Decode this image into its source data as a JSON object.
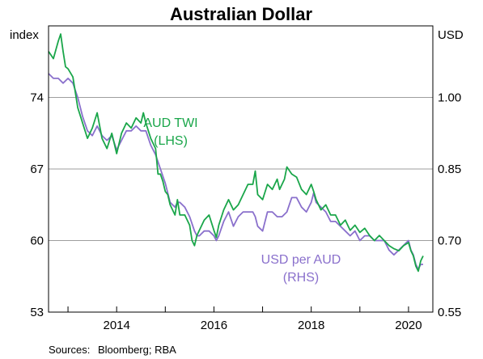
{
  "chart_data": {
    "type": "line",
    "title": "Australian Dollar",
    "left_unit": "index",
    "right_unit": "USD",
    "y_left": {
      "min": 53,
      "max": 81,
      "ticks": [
        53,
        60,
        67,
        74
      ],
      "labels": [
        "53",
        "60",
        "67",
        "74"
      ]
    },
    "y_right": {
      "min": 0.55,
      "max": 1.15,
      "ticks": [
        0.55,
        0.7,
        0.85,
        1.0
      ],
      "labels": [
        "0.55",
        "0.70",
        "0.85",
        "1.00"
      ]
    },
    "x_axis": {
      "min": 2012.6,
      "max": 2020.5,
      "tick_positions": [
        2013,
        2014,
        2015,
        2016,
        2017,
        2018,
        2019,
        2020
      ],
      "labeled_years": [
        2014,
        2016,
        2018,
        2020
      ],
      "labels": [
        "2014",
        "2016",
        "2018",
        "2020"
      ]
    },
    "grid": true,
    "series": [
      {
        "name": "AUD TWI",
        "axis": "left",
        "annotation": [
          "AUD TWI",
          "(LHS)"
        ],
        "color": "#1aa64a",
        "points": [
          [
            2012.6,
            78.5
          ],
          [
            2012.7,
            77.8
          ],
          [
            2012.8,
            79.5
          ],
          [
            2012.85,
            80.2
          ],
          [
            2012.9,
            78.5
          ],
          [
            2012.95,
            77.0
          ],
          [
            2013.0,
            76.8
          ],
          [
            2013.1,
            76.0
          ],
          [
            2013.2,
            73.0
          ],
          [
            2013.3,
            71.5
          ],
          [
            2013.4,
            70.0
          ],
          [
            2013.5,
            71.0
          ],
          [
            2013.6,
            72.5
          ],
          [
            2013.7,
            70.0
          ],
          [
            2013.8,
            69.0
          ],
          [
            2013.9,
            70.5
          ],
          [
            2014.0,
            68.5
          ],
          [
            2014.1,
            70.5
          ],
          [
            2014.2,
            71.5
          ],
          [
            2014.3,
            71.0
          ],
          [
            2014.4,
            72.0
          ],
          [
            2014.5,
            71.5
          ],
          [
            2014.55,
            72.5
          ],
          [
            2014.6,
            71.5
          ],
          [
            2014.7,
            70.0
          ],
          [
            2014.8,
            69.0
          ],
          [
            2014.85,
            66.5
          ],
          [
            2014.9,
            66.5
          ],
          [
            2014.95,
            65.8
          ],
          [
            2015.0,
            64.8
          ],
          [
            2015.05,
            64.5
          ],
          [
            2015.1,
            63.5
          ],
          [
            2015.2,
            62.5
          ],
          [
            2015.25,
            64.0
          ],
          [
            2015.3,
            62.5
          ],
          [
            2015.4,
            62.5
          ],
          [
            2015.5,
            61.5
          ],
          [
            2015.55,
            60.0
          ],
          [
            2015.6,
            59.5
          ],
          [
            2015.65,
            60.5
          ],
          [
            2015.7,
            61.0
          ],
          [
            2015.8,
            62.0
          ],
          [
            2015.9,
            62.5
          ],
          [
            2016.0,
            61.0
          ],
          [
            2016.05,
            60.3
          ],
          [
            2016.1,
            61.5
          ],
          [
            2016.2,
            63.0
          ],
          [
            2016.3,
            64.0
          ],
          [
            2016.4,
            63.0
          ],
          [
            2016.5,
            63.5
          ],
          [
            2016.6,
            64.5
          ],
          [
            2016.7,
            65.5
          ],
          [
            2016.8,
            65.5
          ],
          [
            2016.85,
            66.8
          ],
          [
            2016.9,
            64.5
          ],
          [
            2017.0,
            64.0
          ],
          [
            2017.1,
            65.5
          ],
          [
            2017.2,
            65.0
          ],
          [
            2017.3,
            66.0
          ],
          [
            2017.35,
            65.0
          ],
          [
            2017.45,
            66.0
          ],
          [
            2017.5,
            67.2
          ],
          [
            2017.6,
            66.5
          ],
          [
            2017.7,
            66.2
          ],
          [
            2017.8,
            65.0
          ],
          [
            2017.9,
            64.5
          ],
          [
            2018.0,
            65.5
          ],
          [
            2018.05,
            64.8
          ],
          [
            2018.1,
            64.0
          ],
          [
            2018.2,
            63.0
          ],
          [
            2018.3,
            63.5
          ],
          [
            2018.4,
            62.5
          ],
          [
            2018.5,
            62.5
          ],
          [
            2018.6,
            61.5
          ],
          [
            2018.7,
            62.0
          ],
          [
            2018.8,
            61.0
          ],
          [
            2018.9,
            61.5
          ],
          [
            2019.0,
            60.8
          ],
          [
            2019.1,
            61.2
          ],
          [
            2019.2,
            60.5
          ],
          [
            2019.3,
            60.0
          ],
          [
            2019.4,
            60.5
          ],
          [
            2019.5,
            60.0
          ],
          [
            2019.6,
            59.5
          ],
          [
            2019.7,
            59.2
          ],
          [
            2019.8,
            59.0
          ],
          [
            2019.9,
            59.5
          ],
          [
            2020.0,
            59.8
          ],
          [
            2020.05,
            59.0
          ],
          [
            2020.1,
            58.5
          ],
          [
            2020.15,
            57.5
          ],
          [
            2020.2,
            57.0
          ],
          [
            2020.25,
            58.0
          ],
          [
            2020.3,
            58.5
          ]
        ]
      },
      {
        "name": "USD per AUD",
        "axis": "right",
        "annotation": [
          "USD per AUD",
          "(RHS)"
        ],
        "color": "#8a70cc",
        "points": [
          [
            2012.6,
            1.05
          ],
          [
            2012.7,
            1.04
          ],
          [
            2012.8,
            1.04
          ],
          [
            2012.9,
            1.03
          ],
          [
            2013.0,
            1.04
          ],
          [
            2013.1,
            1.03
          ],
          [
            2013.2,
            1.0
          ],
          [
            2013.3,
            0.96
          ],
          [
            2013.4,
            0.93
          ],
          [
            2013.5,
            0.92
          ],
          [
            2013.6,
            0.94
          ],
          [
            2013.7,
            0.92
          ],
          [
            2013.8,
            0.91
          ],
          [
            2013.9,
            0.92
          ],
          [
            2014.0,
            0.89
          ],
          [
            2014.1,
            0.91
          ],
          [
            2014.2,
            0.93
          ],
          [
            2014.3,
            0.93
          ],
          [
            2014.4,
            0.94
          ],
          [
            2014.5,
            0.93
          ],
          [
            2014.6,
            0.93
          ],
          [
            2014.7,
            0.9
          ],
          [
            2014.8,
            0.88
          ],
          [
            2014.9,
            0.85
          ],
          [
            2015.0,
            0.82
          ],
          [
            2015.1,
            0.78
          ],
          [
            2015.2,
            0.77
          ],
          [
            2015.25,
            0.78
          ],
          [
            2015.3,
            0.78
          ],
          [
            2015.4,
            0.77
          ],
          [
            2015.5,
            0.75
          ],
          [
            2015.6,
            0.72
          ],
          [
            2015.65,
            0.71
          ],
          [
            2015.7,
            0.71
          ],
          [
            2015.8,
            0.72
          ],
          [
            2015.9,
            0.72
          ],
          [
            2016.0,
            0.71
          ],
          [
            2016.05,
            0.7
          ],
          [
            2016.1,
            0.71
          ],
          [
            2016.2,
            0.74
          ],
          [
            2016.3,
            0.76
          ],
          [
            2016.4,
            0.73
          ],
          [
            2016.5,
            0.75
          ],
          [
            2016.6,
            0.76
          ],
          [
            2016.7,
            0.76
          ],
          [
            2016.8,
            0.76
          ],
          [
            2016.85,
            0.75
          ],
          [
            2016.9,
            0.73
          ],
          [
            2017.0,
            0.72
          ],
          [
            2017.1,
            0.76
          ],
          [
            2017.2,
            0.76
          ],
          [
            2017.3,
            0.75
          ],
          [
            2017.4,
            0.75
          ],
          [
            2017.5,
            0.76
          ],
          [
            2017.6,
            0.79
          ],
          [
            2017.7,
            0.79
          ],
          [
            2017.8,
            0.77
          ],
          [
            2017.9,
            0.76
          ],
          [
            2018.0,
            0.78
          ],
          [
            2018.05,
            0.8
          ],
          [
            2018.1,
            0.78
          ],
          [
            2018.2,
            0.77
          ],
          [
            2018.3,
            0.76
          ],
          [
            2018.4,
            0.74
          ],
          [
            2018.5,
            0.74
          ],
          [
            2018.6,
            0.73
          ],
          [
            2018.7,
            0.72
          ],
          [
            2018.8,
            0.71
          ],
          [
            2018.9,
            0.72
          ],
          [
            2019.0,
            0.7
          ],
          [
            2019.1,
            0.71
          ],
          [
            2019.2,
            0.71
          ],
          [
            2019.3,
            0.7
          ],
          [
            2019.4,
            0.7
          ],
          [
            2019.5,
            0.7
          ],
          [
            2019.6,
            0.68
          ],
          [
            2019.7,
            0.67
          ],
          [
            2019.8,
            0.68
          ],
          [
            2019.9,
            0.69
          ],
          [
            2020.0,
            0.7
          ],
          [
            2020.05,
            0.68
          ],
          [
            2020.1,
            0.67
          ],
          [
            2020.15,
            0.65
          ],
          [
            2020.2,
            0.64
          ],
          [
            2020.25,
            0.65
          ],
          [
            2020.3,
            0.65
          ]
        ]
      }
    ]
  },
  "source_label": "Sources:",
  "source_text": "Bloomberg; RBA"
}
